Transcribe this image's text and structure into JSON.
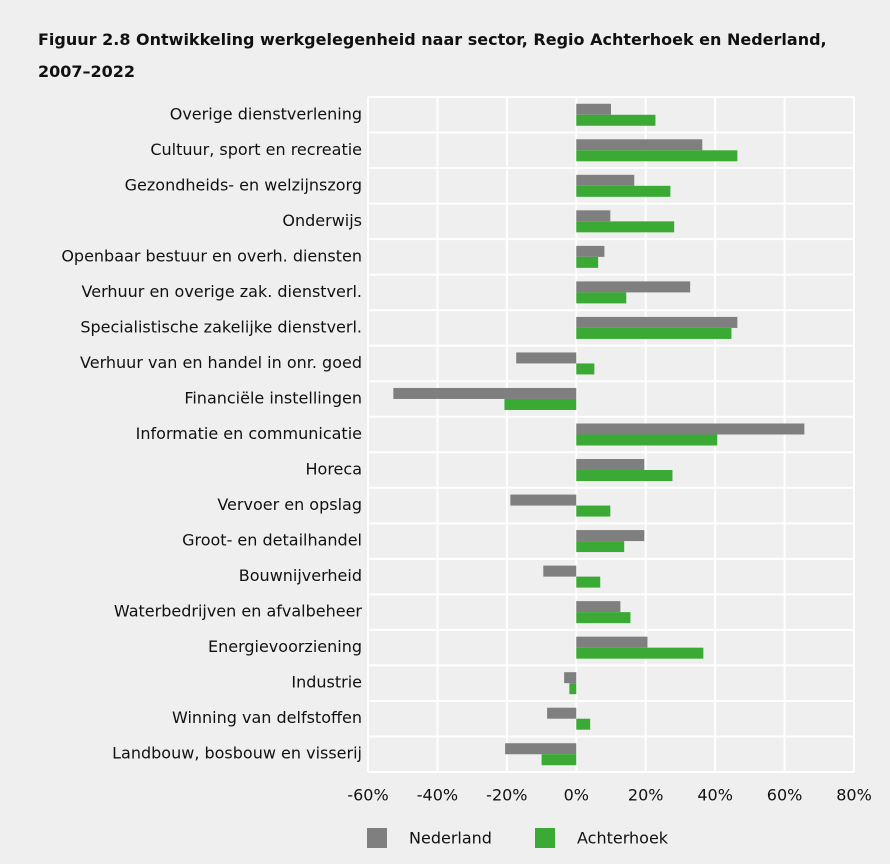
{
  "chart_data": {
    "type": "hbar",
    "title": "Figuur 2.8 Ontwikkeling werkgelegenheid naar sector, Regio Achterhoek en Nederland, 2007–2022",
    "categories": [
      "Overige dienstverlening",
      "Cultuur, sport en recreatie",
      "Gezondheids- en welzijnszorg",
      "Onderwijs",
      "Openbaar bestuur en overh. diensten",
      "Verhuur en overige zak. dienstverl.",
      "Specialistische zakelijke dienstverl.",
      "Verhuur van en handel in onr. goed",
      "Financiële instellingen",
      "Informatie en communicatie",
      "Horeca",
      "Vervoer en opslag",
      "Groot- en detailhandel",
      "Bouwnijverheid",
      "Waterbedrijven en afvalbeheer",
      "Energievoorziening",
      "Industrie",
      "Winning van delfstoffen",
      "Landbouw, bosbouw en visserij"
    ],
    "series": [
      {
        "name": "Nederland",
        "color": "#7f7f7f",
        "values": [
          10,
          36.3,
          16.7,
          9.8,
          8.1,
          32.8,
          46.4,
          -17.3,
          -52.7,
          65.7,
          19.6,
          -19,
          19.6,
          -9.5,
          12.7,
          20.5,
          -3.5,
          -8.4,
          -20.5
        ]
      },
      {
        "name": "Achterhoek",
        "color": "#3aaa35",
        "values": [
          22.8,
          46.4,
          27.1,
          28.2,
          6.3,
          14.4,
          44.7,
          5.2,
          -20.7,
          40.6,
          27.7,
          9.8,
          13.8,
          6.9,
          15.6,
          36.6,
          -2,
          4,
          -10
        ]
      }
    ],
    "xlim": [
      -60,
      80
    ],
    "xticks": [
      {
        "value": -60,
        "label": "-60%"
      },
      {
        "value": -40,
        "label": "-40%"
      },
      {
        "value": -20,
        "label": "-20%"
      },
      {
        "value": 0,
        "label": "0%"
      },
      {
        "value": 20,
        "label": "20%"
      },
      {
        "value": 40,
        "label": "40%"
      },
      {
        "value": 60,
        "label": "60%"
      },
      {
        "value": 80,
        "label": "80%"
      }
    ],
    "grid": true
  }
}
